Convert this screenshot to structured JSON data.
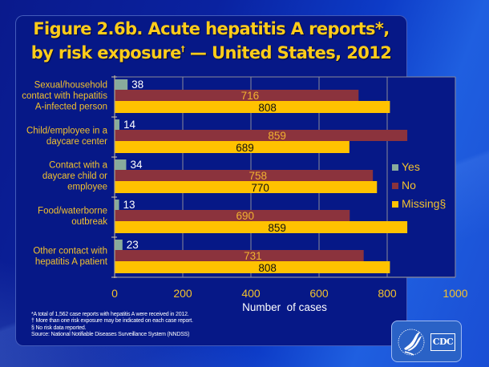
{
  "title": {
    "line1": "Figure 2.6b.  Acute hepatitis A reports*,",
    "line2_main": "by risk exposure",
    "line2_sup": "†",
    "line2_end": " — United States, 2012"
  },
  "chart_data": {
    "type": "bar",
    "orientation": "horizontal",
    "title": "Figure 2.6b. Acute hepatitis A reports*, by risk exposure† — United States, 2012",
    "xlabel": "Number  of cases",
    "ylabel": "",
    "xlim": [
      0,
      1000
    ],
    "xticks": [
      0,
      200,
      400,
      600,
      800,
      1000
    ],
    "grid": true,
    "legend_position": "right",
    "categories": [
      [
        "Sexual/household",
        "contact with hepatitis",
        "A-infected person"
      ],
      [
        "Child/employee in a",
        "daycare center"
      ],
      [
        "Contact with a",
        "daycare child or",
        "employee"
      ],
      [
        "Food/waterborne",
        "outbreak"
      ],
      [
        "Other contact with",
        "hepatitis A patient"
      ]
    ],
    "series": [
      {
        "name": "Yes",
        "color": "#88ab9c",
        "values": [
          38,
          14,
          34,
          13,
          23
        ]
      },
      {
        "name": "No",
        "color": "#8b333d",
        "values": [
          716,
          859,
          758,
          690,
          731
        ]
      },
      {
        "name": "Missing§",
        "color": "#ffc200",
        "values": [
          808,
          689,
          770,
          859,
          808
        ]
      }
    ]
  },
  "footnotes": [
    "*A total of 1,562 case reports with hepatitis A were received in 2012.",
    "† More than one risk exposure may be indicated on each case report.",
    "§ No risk data reported.",
    "Source: National Notifiable Diseases Surveillance System (NNDSS)"
  ],
  "logo": {
    "text": "CDC"
  }
}
